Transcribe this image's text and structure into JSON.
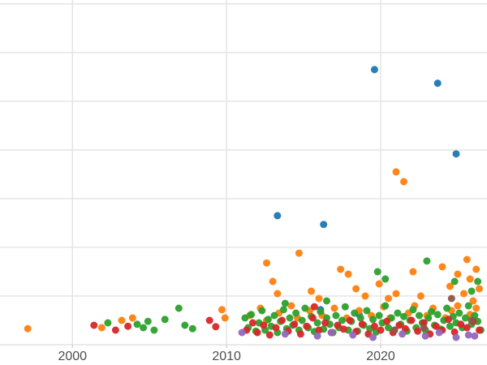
{
  "chart_data": {
    "type": "scatter",
    "title": "",
    "subtitle": "",
    "xlabel": "",
    "ylabel": "",
    "legend": "none",
    "grid": true,
    "background": "#ffffff",
    "gridline_color": "#e3e3e3",
    "tick_color": "#c9c9c9",
    "tick_label_color": "#4d4d4d",
    "point_radius": 4.5,
    "x_ticks": [
      2000,
      2010,
      2020
    ],
    "xlim": [
      1995.3,
      2026.9
    ],
    "ylim": [
      0,
      7.08
    ],
    "y_gridlines": [
      0,
      1,
      2,
      3,
      4,
      5,
      6,
      7
    ],
    "series": [
      {
        "name": "blue",
        "color": "#1f77b4",
        "points": [
          [
            2013.3,
            2.65
          ],
          [
            2016.3,
            2.47
          ],
          [
            2019.6,
            5.65
          ],
          [
            2023.7,
            5.37
          ],
          [
            2024.9,
            3.92
          ],
          [
            2016.1,
            0.72
          ],
          [
            2018.6,
            0.62
          ]
        ]
      },
      {
        "name": "orange",
        "color": "#ff7f0e",
        "points": [
          [
            1997.1,
            0.33
          ],
          [
            2001.9,
            0.35
          ],
          [
            2003.2,
            0.5
          ],
          [
            2003.9,
            0.55
          ],
          [
            2009.7,
            0.72
          ],
          [
            2009.9,
            0.55
          ],
          [
            2011.5,
            0.6
          ],
          [
            2012.2,
            0.75
          ],
          [
            2012.6,
            0.5
          ],
          [
            2013.4,
            0.65
          ],
          [
            2014.2,
            0.8
          ],
          [
            2014.6,
            0.55
          ],
          [
            2015.4,
            0.7
          ],
          [
            2016.2,
            0.6
          ],
          [
            2017.0,
            0.75
          ],
          [
            2017.8,
            0.55
          ],
          [
            2018.6,
            0.7
          ],
          [
            2019.4,
            0.6
          ],
          [
            2020.2,
            0.78
          ],
          [
            2020.6,
            0.55
          ],
          [
            2021.8,
            0.65
          ],
          [
            2022.2,
            0.8
          ],
          [
            2023.0,
            0.6
          ],
          [
            2023.4,
            0.75
          ],
          [
            2024.2,
            0.55
          ],
          [
            2024.6,
            0.7
          ],
          [
            2025.0,
            0.8
          ],
          [
            2025.8,
            0.62
          ],
          [
            2026.2,
            0.75
          ],
          [
            2012.6,
            1.68
          ],
          [
            2014.7,
            1.88
          ],
          [
            2013.0,
            1.3
          ],
          [
            2013.3,
            1.05
          ],
          [
            2015.5,
            1.1
          ],
          [
            2016.0,
            0.95
          ],
          [
            2017.4,
            1.55
          ],
          [
            2017.9,
            1.45
          ],
          [
            2018.4,
            1.15
          ],
          [
            2019.0,
            1.0
          ],
          [
            2019.9,
            1.25
          ],
          [
            2020.5,
            0.95
          ],
          [
            2021.0,
            1.05
          ],
          [
            2022.1,
            1.5
          ],
          [
            2022.6,
            1.0
          ],
          [
            2024.0,
            1.6
          ],
          [
            2024.5,
            1.2
          ],
          [
            2025.0,
            1.45
          ],
          [
            2025.4,
            1.05
          ],
          [
            2025.6,
            1.75
          ],
          [
            2025.8,
            1.35
          ],
          [
            2026.0,
            0.9
          ],
          [
            2026.2,
            1.55
          ],
          [
            2026.4,
            1.15
          ],
          [
            2021.0,
            3.55
          ],
          [
            2021.5,
            3.35
          ]
        ]
      },
      {
        "name": "green",
        "color": "#2ca02c",
        "points": [
          [
            2002.3,
            0.45
          ],
          [
            2004.2,
            0.42
          ],
          [
            2004.6,
            0.35
          ],
          [
            2004.9,
            0.48
          ],
          [
            2005.3,
            0.3
          ],
          [
            2006.0,
            0.52
          ],
          [
            2006.9,
            0.75
          ],
          [
            2007.3,
            0.4
          ],
          [
            2007.8,
            0.33
          ],
          [
            2011.2,
            0.55
          ],
          [
            2011.4,
            0.35
          ],
          [
            2011.6,
            0.62
          ],
          [
            2011.9,
            0.28
          ],
          [
            2012.1,
            0.45
          ],
          [
            2012.3,
            0.7
          ],
          [
            2012.5,
            0.3
          ],
          [
            2012.7,
            0.52
          ],
          [
            2012.9,
            0.38
          ],
          [
            2013.1,
            0.6
          ],
          [
            2013.3,
            0.25
          ],
          [
            2013.5,
            0.48
          ],
          [
            2013.7,
            0.72
          ],
          [
            2013.9,
            0.33
          ],
          [
            2014.1,
            0.55
          ],
          [
            2014.3,
            0.4
          ],
          [
            2014.5,
            0.65
          ],
          [
            2014.7,
            0.3
          ],
          [
            2014.9,
            0.5
          ],
          [
            2015.1,
            0.75
          ],
          [
            2015.3,
            0.35
          ],
          [
            2015.5,
            0.58
          ],
          [
            2015.7,
            0.27
          ],
          [
            2015.9,
            0.45
          ],
          [
            2016.1,
            0.68
          ],
          [
            2016.3,
            0.32
          ],
          [
            2016.5,
            0.55
          ],
          [
            2016.7,
            0.42
          ],
          [
            2016.9,
            0.25
          ],
          [
            2017.1,
            0.6
          ],
          [
            2017.3,
            0.35
          ],
          [
            2017.5,
            0.5
          ],
          [
            2017.7,
            0.78
          ],
          [
            2017.9,
            0.3
          ],
          [
            2018.1,
            0.48
          ],
          [
            2018.3,
            0.65
          ],
          [
            2018.5,
            0.28
          ],
          [
            2018.7,
            0.55
          ],
          [
            2018.9,
            0.4
          ],
          [
            2019.1,
            0.7
          ],
          [
            2019.3,
            0.33
          ],
          [
            2019.5,
            0.52
          ],
          [
            2019.7,
            0.26
          ],
          [
            2019.9,
            0.6
          ],
          [
            2020.1,
            0.45
          ],
          [
            2020.3,
            0.8
          ],
          [
            2020.5,
            0.35
          ],
          [
            2020.7,
            0.55
          ],
          [
            2020.9,
            0.3
          ],
          [
            2021.1,
            0.65
          ],
          [
            2021.3,
            0.42
          ],
          [
            2021.5,
            0.58
          ],
          [
            2021.7,
            0.28
          ],
          [
            2021.9,
            0.5
          ],
          [
            2022.1,
            0.72
          ],
          [
            2022.3,
            0.35
          ],
          [
            2022.5,
            0.6
          ],
          [
            2022.7,
            0.45
          ],
          [
            2022.9,
            0.3
          ],
          [
            2023.1,
            0.55
          ],
          [
            2023.3,
            0.68
          ],
          [
            2023.5,
            0.4
          ],
          [
            2023.7,
            0.62
          ],
          [
            2023.9,
            0.32
          ],
          [
            2024.1,
            0.5
          ],
          [
            2024.3,
            0.75
          ],
          [
            2024.5,
            0.38
          ],
          [
            2024.7,
            0.58
          ],
          [
            2024.9,
            0.45
          ],
          [
            2025.1,
            0.65
          ],
          [
            2025.3,
            0.35
          ],
          [
            2025.5,
            0.55
          ],
          [
            2025.7,
            0.8
          ],
          [
            2025.9,
            0.42
          ],
          [
            2026.1,
            0.6
          ],
          [
            2026.3,
            0.48
          ],
          [
            2026.5,
            0.3
          ],
          [
            2023.0,
            1.72
          ],
          [
            2019.8,
            1.5
          ],
          [
            2020.3,
            1.35
          ],
          [
            2024.8,
            1.3
          ],
          [
            2025.9,
            1.1
          ],
          [
            2026.3,
            1.3
          ],
          [
            2016.5,
            0.9
          ],
          [
            2013.8,
            0.85
          ]
        ]
      },
      {
        "name": "red",
        "color": "#d62728",
        "points": [
          [
            2001.4,
            0.4
          ],
          [
            2002.8,
            0.3
          ],
          [
            2003.6,
            0.38
          ],
          [
            2008.9,
            0.5
          ],
          [
            2009.3,
            0.37
          ],
          [
            2011.3,
            0.3
          ],
          [
            2011.7,
            0.45
          ],
          [
            2012.0,
            0.25
          ],
          [
            2012.4,
            0.4
          ],
          [
            2012.8,
            0.2
          ],
          [
            2013.2,
            0.35
          ],
          [
            2013.6,
            0.5
          ],
          [
            2014.0,
            0.28
          ],
          [
            2014.4,
            0.42
          ],
          [
            2014.8,
            0.22
          ],
          [
            2015.2,
            0.38
          ],
          [
            2015.6,
            0.55
          ],
          [
            2015.7,
            0.78
          ],
          [
            2016.0,
            0.3
          ],
          [
            2016.4,
            0.45
          ],
          [
            2016.8,
            0.25
          ],
          [
            2017.2,
            0.4
          ],
          [
            2017.6,
            0.32
          ],
          [
            2018.0,
            0.5
          ],
          [
            2018.4,
            0.27
          ],
          [
            2018.8,
            0.42
          ],
          [
            2019.2,
            0.22
          ],
          [
            2019.6,
            0.38
          ],
          [
            2020.0,
            0.3
          ],
          [
            2020.4,
            0.48
          ],
          [
            2020.8,
            0.25
          ],
          [
            2021.2,
            0.4
          ],
          [
            2021.6,
            0.33
          ],
          [
            2022.0,
            0.5
          ],
          [
            2022.4,
            0.28
          ],
          [
            2022.8,
            0.45
          ],
          [
            2023.2,
            0.22
          ],
          [
            2023.6,
            0.38
          ],
          [
            2024.0,
            0.3
          ],
          [
            2024.4,
            0.52
          ],
          [
            2024.8,
            0.26
          ],
          [
            2025.2,
            0.42
          ],
          [
            2025.6,
            0.35
          ],
          [
            2026.0,
            0.48
          ],
          [
            2026.4,
            0.3
          ]
        ]
      },
      {
        "name": "purple",
        "color": "#9467bd",
        "points": [
          [
            2011.0,
            0.25
          ],
          [
            2013.8,
            0.22
          ],
          [
            2015.9,
            0.18
          ],
          [
            2016.8,
            0.25
          ],
          [
            2018.2,
            0.2
          ],
          [
            2019.5,
            0.15
          ],
          [
            2021.4,
            0.22
          ],
          [
            2022.9,
            0.18
          ],
          [
            2023.8,
            0.25
          ],
          [
            2024.9,
            0.15
          ],
          [
            2025.7,
            0.2
          ],
          [
            2026.1,
            0.18
          ]
        ]
      },
      {
        "name": "brown",
        "color": "#8c564b",
        "points": [
          [
            2020.9,
            0.3
          ],
          [
            2022.8,
            0.35
          ],
          [
            2024.6,
            0.95
          ],
          [
            2025.9,
            0.5
          ]
        ]
      }
    ]
  },
  "axes": {
    "x_tick_labels": [
      "2000",
      "2010",
      "2020"
    ]
  }
}
